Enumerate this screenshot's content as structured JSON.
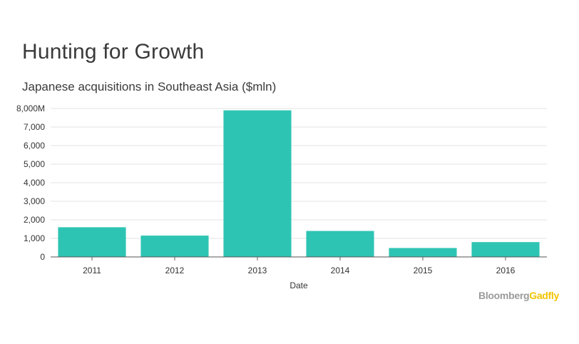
{
  "chart_data": {
    "type": "bar",
    "title": "Hunting for Growth",
    "subtitle": "Japanese acquisitions in Southeast Asia ($mln)",
    "xlabel": "Date",
    "ylabel": "",
    "categories": [
      "2011",
      "2012",
      "2013",
      "2014",
      "2015",
      "2016"
    ],
    "values": [
      1600,
      1150,
      7900,
      1400,
      480,
      800
    ],
    "ylim": [
      0,
      8000
    ],
    "yticks": [
      0,
      1000,
      2000,
      3000,
      4000,
      5000,
      6000,
      7000,
      8000
    ],
    "ytick_labels": [
      "0",
      "1,000",
      "2,000",
      "3,000",
      "4,000",
      "5,000",
      "6,000",
      "7,000",
      "8,000M"
    ],
    "grid": true,
    "bar_color": "#2ec4b3"
  },
  "logo": {
    "part1": "Bloomberg",
    "part2": "Gadfly",
    "color1": "#9b9b9b",
    "color2": "#f2c300"
  }
}
